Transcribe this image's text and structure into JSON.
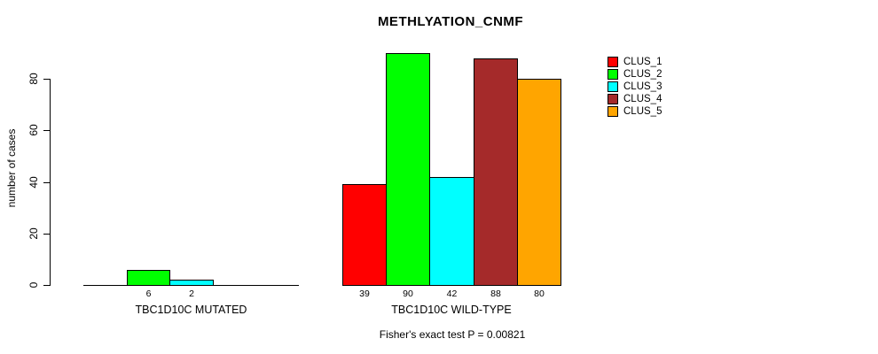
{
  "title": "METHLYATION_CNMF",
  "chart_data": {
    "type": "bar",
    "title": "METHLYATION_CNMF",
    "xlabel": "",
    "ylabel": "number of cases",
    "ylim": [
      0,
      90
    ],
    "yticks": [
      0,
      20,
      40,
      60,
      80
    ],
    "grid": false,
    "legend_position": "top-right",
    "categories": [
      "TBC1D10C MUTATED",
      "TBC1D10C WILD-TYPE"
    ],
    "series": [
      {
        "name": "CLUS_1",
        "color": "#FF0000",
        "values": [
          0,
          39
        ]
      },
      {
        "name": "CLUS_2",
        "color": "#00FF00",
        "values": [
          6,
          90
        ]
      },
      {
        "name": "CLUS_3",
        "color": "#00FFFF",
        "values": [
          2,
          42
        ]
      },
      {
        "name": "CLUS_4",
        "color": "#A52A2A",
        "values": [
          0,
          88
        ]
      },
      {
        "name": "CLUS_5",
        "color": "#FFA500",
        "values": [
          0,
          80
        ]
      }
    ],
    "bar_value_labels": [
      "6",
      "2",
      "39",
      "90",
      "42",
      "88",
      "80"
    ],
    "annotation": "Fisher's exact test P = 0.00821"
  }
}
